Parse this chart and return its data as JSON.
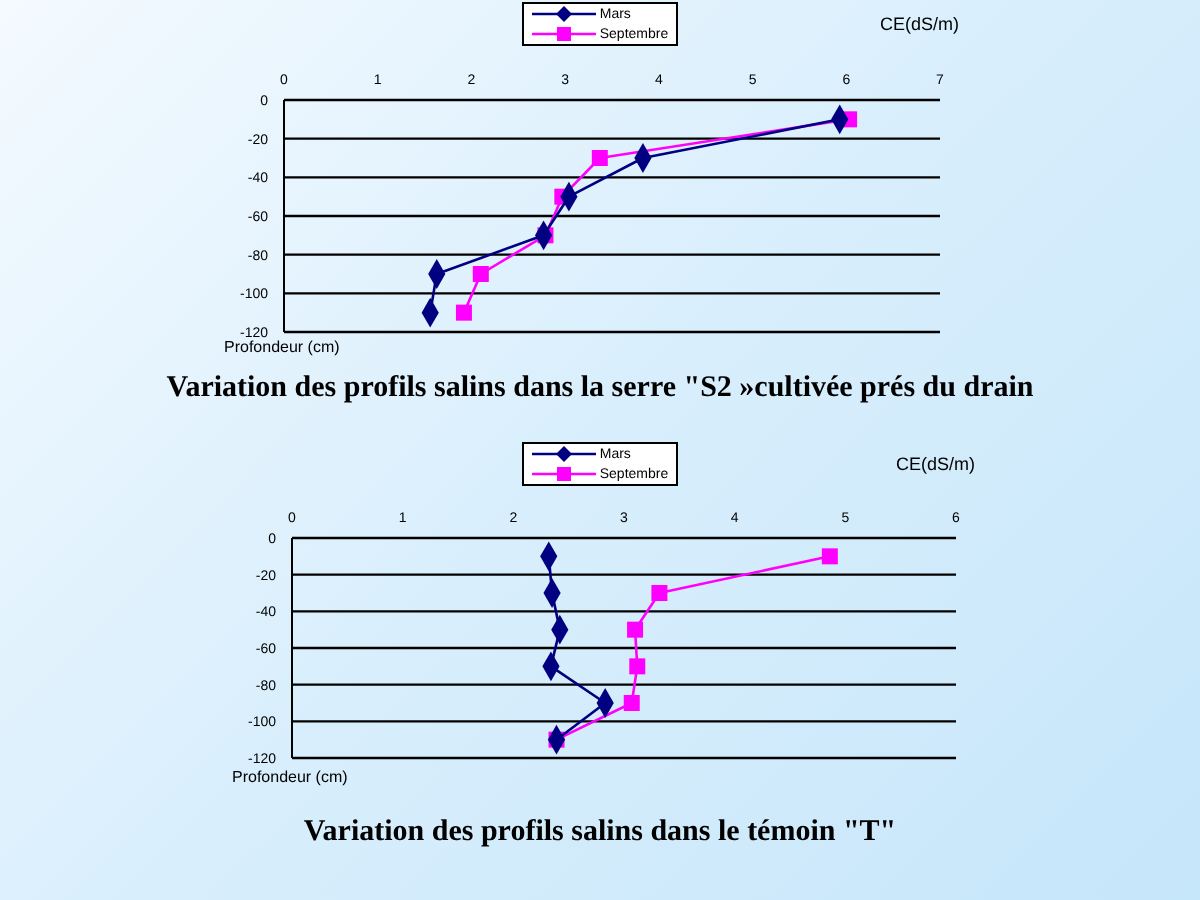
{
  "chart_data": [
    {
      "type": "line",
      "title": "Variation des profils salins dans la serre \"S2 »cultivée prés du drain",
      "xlabel": "CE(dS/m)",
      "ylabel": "Profondeur (cm)",
      "legend": "top",
      "grid": "y",
      "xlim": [
        0,
        7
      ],
      "xticks": [
        0,
        1,
        2,
        3,
        4,
        5,
        6,
        7
      ],
      "ylim": [
        -120,
        0
      ],
      "yticks": [
        0,
        -20,
        -40,
        -60,
        -80,
        -100,
        -120
      ],
      "series": [
        {
          "name": "Mars",
          "color": "#000080",
          "marker": "diamond",
          "x": [
            5.93,
            3.83,
            3.04,
            2.77,
            1.63,
            1.56
          ],
          "values": [
            -10,
            -30,
            -50,
            -70,
            -90,
            -110
          ]
        },
        {
          "name": "Septembre",
          "color": "#ff00ff",
          "marker": "square",
          "x": [
            6.03,
            3.37,
            2.97,
            2.79,
            2.1,
            1.92
          ],
          "values": [
            -10,
            -30,
            -50,
            -70,
            -90,
            -110
          ]
        }
      ]
    },
    {
      "type": "line",
      "title": "Variation des profils salins dans le témoin \"T\"",
      "xlabel": "CE(dS/m)",
      "ylabel": "Profondeur (cm)",
      "legend": "top",
      "grid": "y",
      "xlim": [
        0,
        6
      ],
      "xticks": [
        0,
        1,
        2,
        3,
        4,
        5,
        6
      ],
      "ylim": [
        -120,
        0
      ],
      "yticks": [
        0,
        -20,
        -40,
        -60,
        -80,
        -100,
        -120
      ],
      "series": [
        {
          "name": "Mars",
          "color": "#000080",
          "marker": "diamond",
          "x": [
            2.32,
            2.35,
            2.42,
            2.34,
            2.83,
            2.39
          ],
          "values": [
            -10,
            -30,
            -50,
            -70,
            -90,
            -110
          ]
        },
        {
          "name": "Septembre",
          "color": "#ff00ff",
          "marker": "square",
          "x": [
            4.86,
            3.32,
            3.1,
            3.12,
            3.07,
            2.39
          ],
          "values": [
            -10,
            -30,
            -50,
            -70,
            -90,
            -110
          ]
        }
      ]
    }
  ]
}
